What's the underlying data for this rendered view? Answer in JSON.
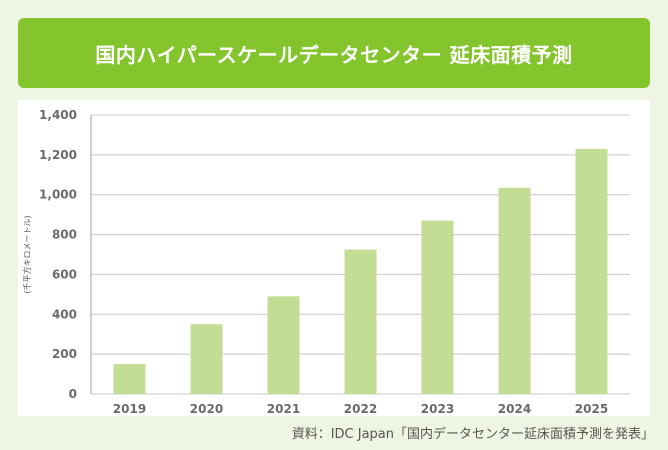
{
  "title": "国内ハイパースケールデータセンター 延床面積予測",
  "source": "資料：IDC Japan「国内データセンター延床面積予測を発表」",
  "colors": {
    "banner": "#84c42d",
    "bar": "#c3dd95",
    "background": "#eef5e3"
  },
  "chart_data": {
    "type": "bar",
    "categories": [
      "2019",
      "2020",
      "2021",
      "2022",
      "2023",
      "2024",
      "2025"
    ],
    "values": [
      150,
      350,
      490,
      725,
      870,
      1035,
      1230
    ],
    "ylabel": "(千平方キロメートル)",
    "xlabel": "",
    "ylim": [
      0,
      1400
    ],
    "yticks": [
      0,
      200,
      400,
      600,
      800,
      1000,
      1200,
      1400
    ],
    "ytick_labels": [
      "0",
      "200",
      "400",
      "600",
      "800",
      "1,000",
      "1,200",
      "1,400"
    ],
    "grid": true,
    "legend": "none"
  }
}
